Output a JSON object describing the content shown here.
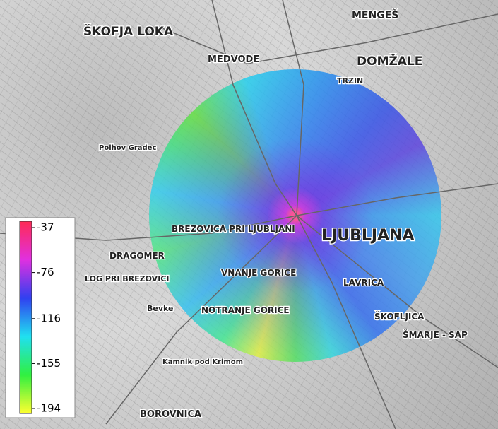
{
  "map_labels": [
    "ŠKOFJA LOKA",
    "MEDVODE",
    "MENGEŠ",
    "DOMŽALE",
    "TRZIN",
    "LJUBLJANA",
    "BREZOVICA PRI LJUBLJANI",
    "VNANJE GORICE",
    "NOTRANJE GORICE",
    "LAVRICA",
    "ŠKOFLJICA",
    "ŠMARJE - SAP",
    "DRAGOMER",
    "LOG PRI BREZOVICI",
    "BOROVNICA",
    "Polhov Gradec",
    "Kamnik pod Krimom",
    "Bevke"
  ],
  "legend": {
    "range": [
      -194,
      -37
    ],
    "ticks": [
      -37,
      -76,
      -116,
      -155,
      -194
    ]
  }
}
